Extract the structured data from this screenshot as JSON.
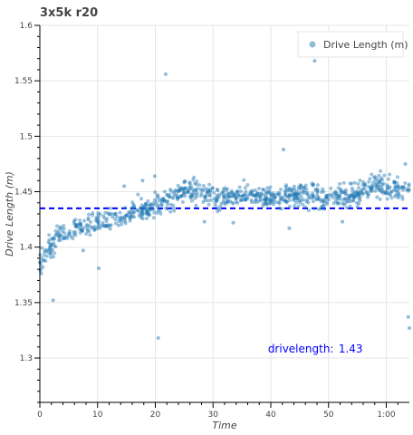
{
  "chart_data": {
    "type": "scatter",
    "title": "3x5k r20",
    "xlabel": "Time",
    "ylabel": "Drive Length (m)",
    "xlim": [
      0,
      64
    ],
    "ylim": [
      1.26,
      1.6
    ],
    "x_ticks": [
      {
        "value": 0,
        "label": "0"
      },
      {
        "value": 10,
        "label": "10"
      },
      {
        "value": 20,
        "label": "20"
      },
      {
        "value": 30,
        "label": "30"
      },
      {
        "value": 40,
        "label": "40"
      },
      {
        "value": 50,
        "label": "50"
      },
      {
        "value": 60,
        "label": "1:00"
      }
    ],
    "y_ticks": [
      {
        "value": 1.3,
        "label": "1.3"
      },
      {
        "value": 1.35,
        "label": "1.35"
      },
      {
        "value": 1.4,
        "label": "1.4"
      },
      {
        "value": 1.45,
        "label": "1.45"
      },
      {
        "value": 1.5,
        "label": "1.5"
      },
      {
        "value": 1.55,
        "label": "1.55"
      },
      {
        "value": 1.6,
        "label": "1.6"
      }
    ],
    "grid": true,
    "legend_position": "top-right",
    "series": [
      {
        "name": "Drive Length (m)",
        "color": "#1f77b4",
        "trend_points": [
          [
            0,
            1.385
          ],
          [
            1,
            1.392
          ],
          [
            2,
            1.402
          ],
          [
            3,
            1.41
          ],
          [
            5,
            1.416
          ],
          [
            8,
            1.42
          ],
          [
            12,
            1.425
          ],
          [
            16,
            1.43
          ],
          [
            20,
            1.437
          ],
          [
            23,
            1.445
          ],
          [
            25,
            1.452
          ],
          [
            28,
            1.447
          ],
          [
            32,
            1.445
          ],
          [
            36,
            1.447
          ],
          [
            40,
            1.444
          ],
          [
            44,
            1.446
          ],
          [
            48,
            1.447
          ],
          [
            52,
            1.445
          ],
          [
            55,
            1.447
          ],
          [
            58,
            1.457
          ],
          [
            61,
            1.452
          ],
          [
            64,
            1.45
          ]
        ],
        "outliers": [
          [
            21.8,
            1.556
          ],
          [
            47.6,
            1.568
          ],
          [
            42.2,
            1.488
          ],
          [
            20.5,
            1.318
          ],
          [
            10.2,
            1.381
          ],
          [
            2.3,
            1.352
          ],
          [
            63.8,
            1.337
          ],
          [
            64,
            1.327
          ],
          [
            63.3,
            1.475
          ],
          [
            17.8,
            1.46
          ],
          [
            14.6,
            1.455
          ],
          [
            19.9,
            1.464
          ],
          [
            7.5,
            1.397
          ],
          [
            12.2,
            1.435
          ],
          [
            28.5,
            1.423
          ],
          [
            33.5,
            1.422
          ],
          [
            43.2,
            1.417
          ],
          [
            52.4,
            1.423
          ]
        ]
      }
    ],
    "reference_line": {
      "y": 1.435,
      "color": "#0000ff",
      "style": "dashed"
    },
    "annotation": {
      "label": "drivelength:",
      "value": "1.43",
      "x": 39.5,
      "y": 1.305,
      "color": "#0000ff"
    }
  }
}
